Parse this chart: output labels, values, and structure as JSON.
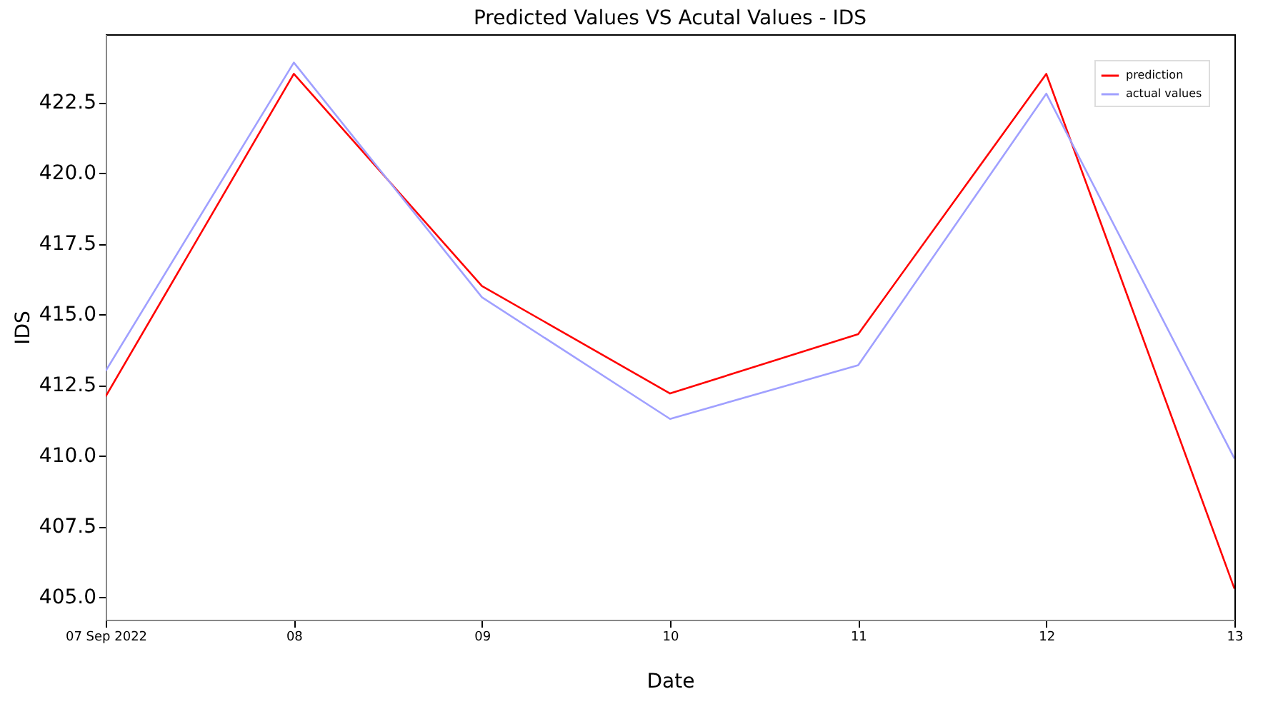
{
  "chart_data": {
    "type": "line",
    "title": "Predicted Values VS Acutal Values - IDS",
    "xlabel": "Date",
    "ylabel": "IDS",
    "x": [
      "2022-09-07",
      "2022-09-08",
      "2022-09-09",
      "2022-09-10",
      "2022-09-11",
      "2022-09-12",
      "2022-09-13"
    ],
    "series": [
      {
        "name": "prediction",
        "color": "#ff0000",
        "values": [
          412.1,
          423.5,
          416.0,
          412.2,
          414.3,
          423.5,
          405.3
        ]
      },
      {
        "name": "actual values",
        "color": "#a0a0ff",
        "values": [
          413.0,
          423.9,
          415.6,
          411.3,
          413.2,
          422.8,
          409.9
        ]
      }
    ],
    "xlim": [
      "2022-09-07",
      "2022-09-13"
    ],
    "xticks": [
      {
        "value": "2022-09-07",
        "label": "07 Sep 2022"
      },
      {
        "value": "2022-09-08",
        "label": "08"
      },
      {
        "value": "2022-09-09",
        "label": "09"
      },
      {
        "value": "2022-09-10",
        "label": "10"
      },
      {
        "value": "2022-09-11",
        "label": "11"
      },
      {
        "value": "2022-09-12",
        "label": "12"
      },
      {
        "value": "2022-09-13",
        "label": "13"
      }
    ],
    "ylim": [
      404.2,
      424.9
    ],
    "yticks": [
      {
        "value": 405,
        "label": "405.0"
      },
      {
        "value": 407.5,
        "label": "407.5"
      },
      {
        "value": 410,
        "label": "410.0"
      },
      {
        "value": 412.5,
        "label": "412.5"
      },
      {
        "value": 415,
        "label": "415.0"
      },
      {
        "value": 417.5,
        "label": "417.5"
      },
      {
        "value": 420,
        "label": "420.0"
      },
      {
        "value": 422.5,
        "label": "422.5"
      }
    ],
    "grid": false,
    "legend": "top right",
    "marker": "none",
    "line_style": "solid"
  }
}
